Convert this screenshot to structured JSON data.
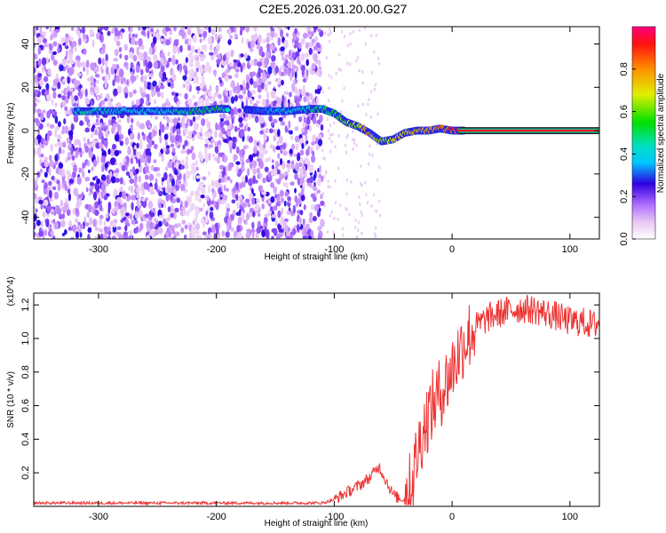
{
  "title": "C2E5.2026.031.20.00.G27",
  "chart_data": [
    {
      "type": "heatmap",
      "xlabel": "Height of straight line (km)",
      "ylabel": "Frequency (Hz)",
      "xlim": [
        -355,
        125
      ],
      "ylim": [
        -50,
        48
      ],
      "xticks": [
        -300,
        -200,
        -100,
        0,
        100
      ],
      "yticks": [
        -40,
        -20,
        0,
        20,
        40
      ],
      "colorbar": {
        "label": "Normalized spectral amplitude",
        "range": [
          0.0,
          1.0
        ],
        "ticks": [
          0.0,
          0.2,
          0.4,
          0.6,
          0.8
        ]
      },
      "ridge": {
        "x": [
          -320,
          -300,
          -280,
          -260,
          -240,
          -220,
          -200,
          -180,
          -160,
          -140,
          -120,
          -110,
          -100,
          -90,
          -80,
          -70,
          -60,
          -50,
          -40,
          -30,
          -20,
          -10,
          0,
          10,
          50,
          100,
          125
        ],
        "y": [
          9,
          9,
          9,
          9,
          9,
          9,
          10,
          10,
          9,
          9,
          10,
          10,
          8,
          4,
          2,
          -1,
          -5,
          -4,
          -1,
          0,
          0,
          1,
          0,
          0,
          0,
          0,
          0
        ],
        "amplitude": [
          0.5,
          0.5,
          0.45,
          0.45,
          0.45,
          0.55,
          0.6,
          0.3,
          0.35,
          0.45,
          0.5,
          0.55,
          0.6,
          0.7,
          0.75,
          0.8,
          0.7,
          0.75,
          0.8,
          0.85,
          0.9,
          0.9,
          0.95,
          1.0,
          1.0,
          1.0,
          1.0
        ]
      },
      "grid": false
    },
    {
      "type": "line",
      "xlabel": "Height of straight line (km)",
      "ylabel": "SNR (10 * v/v)",
      "y_multiplier": "(x10^4)",
      "xlim": [
        -355,
        125
      ],
      "ylim": [
        0.0,
        1.27
      ],
      "xticks": [
        -300,
        -200,
        -100,
        0,
        100
      ],
      "yticks": [
        0.2,
        0.4,
        0.6,
        0.8,
        1.0,
        1.2
      ],
      "series": [
        {
          "color": "#ee3333",
          "x": [
            -355,
            -300,
            -250,
            -200,
            -150,
            -110,
            -100,
            -90,
            -80,
            -70,
            -62,
            -58,
            -50,
            -42,
            -35,
            -30,
            -25,
            -20,
            -15,
            -10,
            -5,
            0,
            5,
            10,
            20,
            30,
            40,
            50,
            60,
            70,
            80,
            90,
            100,
            110,
            120,
            125
          ],
          "y": [
            0.02,
            0.02,
            0.02,
            0.02,
            0.02,
            0.02,
            0.04,
            0.08,
            0.12,
            0.17,
            0.24,
            0.18,
            0.07,
            0.03,
            0.12,
            0.3,
            0.45,
            0.55,
            0.62,
            0.68,
            0.74,
            0.82,
            0.9,
            0.98,
            1.07,
            1.12,
            1.15,
            1.17,
            1.18,
            1.17,
            1.15,
            1.13,
            1.1,
            1.1,
            1.08,
            1.1
          ]
        }
      ],
      "grid": false
    }
  ]
}
